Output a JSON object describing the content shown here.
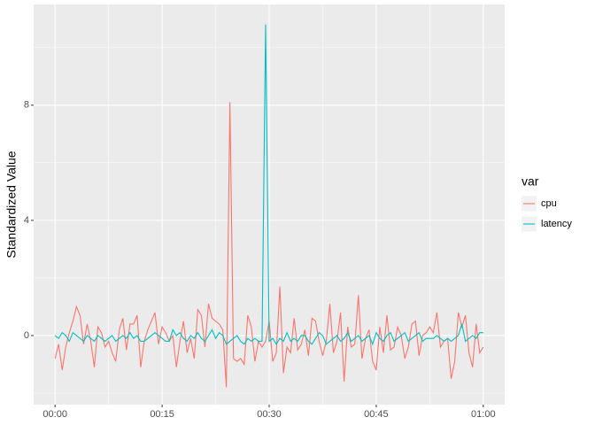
{
  "chart_data": {
    "type": "line",
    "y_label": "Standardized Value",
    "legend_title": "var",
    "x": [
      0,
      0.5,
      1,
      1.5,
      2,
      2.5,
      3,
      3.5,
      4,
      4.5,
      5,
      5.5,
      6,
      6.5,
      7,
      7.5,
      8,
      8.5,
      9,
      9.5,
      10,
      10.5,
      11,
      11.5,
      12,
      12.5,
      13,
      13.5,
      14,
      14.5,
      15,
      15.5,
      16,
      16.5,
      17,
      17.5,
      18,
      18.5,
      19,
      19.5,
      20,
      20.5,
      21,
      21.5,
      22,
      22.5,
      23,
      23.5,
      24,
      24.5,
      25,
      25.5,
      26,
      26.5,
      27,
      27.5,
      28,
      28.5,
      29,
      29.5,
      30,
      30.5,
      31,
      31.5,
      32,
      32.5,
      33,
      33.5,
      34,
      34.5,
      35,
      35.5,
      36,
      36.5,
      37,
      37.5,
      38,
      38.5,
      39,
      39.5,
      40,
      40.5,
      41,
      41.5,
      42,
      42.5,
      43,
      43.5,
      44,
      44.5,
      45,
      45.5,
      46,
      46.5,
      47,
      47.5,
      48,
      48.5,
      49,
      49.5,
      50,
      50.5,
      51,
      51.5,
      52,
      52.5,
      53,
      53.5,
      54,
      54.5,
      55,
      55.5,
      56,
      56.5,
      57,
      57.5,
      58,
      58.5,
      59,
      59.5,
      60
    ],
    "series": [
      {
        "name": "cpu",
        "color": "#F8766D",
        "values": [
          -0.8,
          -0.3,
          -1.2,
          -0.4,
          0.1,
          0.5,
          1.0,
          0.7,
          -0.3,
          0.4,
          -0.2,
          -1.1,
          0.3,
          0.1,
          -0.4,
          -0.2,
          -0.6,
          -0.9,
          0.2,
          0.6,
          -0.5,
          0.4,
          0.4,
          0.7,
          -1.1,
          -0.2,
          0.2,
          0.5,
          0.8,
          -0.3,
          0.3,
          0.1,
          -0.2,
          0.0,
          -1.1,
          -0.2,
          0.5,
          -0.6,
          -0.1,
          -0.8,
          0.9,
          0.7,
          -0.4,
          1.1,
          0.6,
          0.5,
          0.4,
          0.2,
          -1.8,
          8.1,
          -0.8,
          -0.9,
          -0.8,
          -1.0,
          0.7,
          0.3,
          -0.9,
          -0.2,
          -0.4,
          -0.2,
          0.5,
          -0.9,
          -0.6,
          1.7,
          -1.3,
          -0.4,
          -0.6,
          0.6,
          -0.5,
          -0.3,
          0.2,
          -0.7,
          0.6,
          0.5,
          -0.2,
          -0.7,
          -0.2,
          1.1,
          -0.6,
          -0.2,
          0.8,
          -1.6,
          0.3,
          -0.4,
          -0.3,
          1.4,
          -0.8,
          -0.1,
          0.2,
          -0.9,
          -1.2,
          0.3,
          -0.6,
          0.7,
          -0.5,
          -0.4,
          0.3,
          0.0,
          -0.8,
          -0.4,
          0.4,
          0.5,
          -0.7,
          0.0,
          0.1,
          0.3,
          0.1,
          0.8,
          -0.4,
          -0.2,
          -0.1,
          -1.5,
          -0.9,
          0.8,
          0.3,
          0.7,
          -0.6,
          -1.1,
          0.4,
          -0.6,
          -0.4
        ]
      },
      {
        "name": "latency",
        "color": "#00BFC4",
        "values": [
          0.0,
          -0.1,
          0.1,
          0.0,
          -0.2,
          0.1,
          0.0,
          -0.1,
          -0.2,
          0.0,
          -0.1,
          -0.2,
          0.0,
          -0.1,
          -0.2,
          -0.1,
          0.0,
          -0.2,
          -0.1,
          0.0,
          -0.1,
          0.1,
          -0.1,
          0.0,
          -0.2,
          -0.2,
          -0.1,
          0.0,
          0.1,
          0.0,
          -0.1,
          -0.2,
          -0.2,
          0.2,
          0.0,
          0.1,
          -0.1,
          -0.2,
          0.0,
          -0.1,
          0.1,
          -0.1,
          -0.2,
          0.0,
          0.2,
          -0.1,
          0.1,
          0.0,
          -0.3,
          -0.2,
          -0.1,
          0.0,
          -0.2,
          -0.3,
          -0.1,
          -0.2,
          -0.1,
          -0.2,
          -0.2,
          10.8,
          -0.2,
          -0.1,
          -0.3,
          -0.1,
          -0.2,
          0.1,
          -0.2,
          -0.1,
          -0.2,
          0.0,
          0.0,
          -0.2,
          -0.3,
          -0.1,
          0.1,
          0.0,
          -0.3,
          -0.2,
          -0.1,
          0.0,
          -0.2,
          -0.1,
          0.1,
          -0.2,
          -0.1,
          0.0,
          -0.2,
          -0.1,
          0.0,
          -0.3,
          0.1,
          -0.1,
          -0.2,
          0.0,
          0.1,
          -0.2,
          -0.1,
          0.0,
          0.1,
          -0.2,
          -0.1,
          0.0,
          0.1,
          -0.2,
          -0.1,
          -0.1,
          -0.1,
          0.0,
          -0.1,
          -0.2,
          -0.1,
          -0.2,
          -0.1,
          0.0,
          0.4,
          -0.2,
          -0.1,
          0.0,
          -0.1,
          0.1,
          0.1
        ]
      }
    ],
    "xlim": [
      -3,
      63
    ],
    "xticks": [
      {
        "value": 0,
        "label": "00:00"
      },
      {
        "value": 15,
        "label": "00:15"
      },
      {
        "value": 30,
        "label": "00:30"
      },
      {
        "value": 45,
        "label": "00:45"
      },
      {
        "value": 60,
        "label": "01:00"
      }
    ],
    "ylim": [
      -2.4,
      11.5
    ],
    "yticks": [
      0,
      4,
      8
    ],
    "grid": true
  }
}
